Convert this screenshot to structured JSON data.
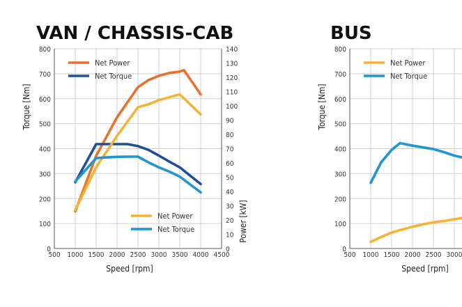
{
  "chart_data": [
    {
      "type": "line",
      "title": "VAN / CHASSIS-CAB",
      "xlabel": "Speed [rpm]",
      "ylabel": "Torque [Nm]",
      "y2label": "Power [kW]",
      "xlim": [
        500,
        4500
      ],
      "ylim": [
        0,
        800
      ],
      "y2lim": [
        0,
        140
      ],
      "xticks": [
        "500",
        "1000",
        "1500",
        "2000",
        "2500",
        "3000",
        "3500",
        "4000",
        "4500"
      ],
      "yticks": [
        "0",
        "100",
        "200",
        "300",
        "400",
        "500",
        "600",
        "700",
        "800"
      ],
      "y2ticks": [
        "0",
        "10",
        "20",
        "30",
        "40",
        "50",
        "60",
        "70",
        "80",
        "90",
        "100",
        "110",
        "120",
        "130",
        "140"
      ],
      "grid": true,
      "legends": [
        {
          "position": "top-left",
          "entries": [
            {
              "label": "Net Power",
              "color": "#e8712c"
            },
            {
              "label": "Net Torque",
              "color": "#1e4f9a"
            }
          ]
        },
        {
          "position": "bottom-right",
          "entries": [
            {
              "label": "Net Power",
              "color": "#f8b133"
            },
            {
              "label": "Net Torque",
              "color": "#1f95d3"
            }
          ]
        }
      ],
      "series": [
        {
          "name": "Net Power",
          "axis": "right",
          "color": "#e8712c",
          "points": [
            [
              1000,
              26
            ],
            [
              1500,
              65
            ],
            [
              2000,
              92
            ],
            [
              2500,
              113
            ],
            [
              2750,
              118
            ],
            [
              3000,
              121
            ],
            [
              3250,
              123
            ],
            [
              3500,
              124
            ],
            [
              3600,
              125
            ],
            [
              4000,
              108
            ]
          ]
        },
        {
          "name": "Net Torque",
          "axis": "left",
          "color": "#1e4f9a",
          "points": [
            [
              1000,
              265
            ],
            [
              1500,
              418
            ],
            [
              1750,
              418
            ],
            [
              2000,
              418
            ],
            [
              2250,
              418
            ],
            [
              2500,
              410
            ],
            [
              2750,
              395
            ],
            [
              3000,
              372
            ],
            [
              3250,
              348
            ],
            [
              3500,
              325
            ],
            [
              4000,
              258
            ]
          ]
        },
        {
          "name": "Net Power",
          "axis": "right",
          "color": "#f8b133",
          "points": [
            [
              1000,
              27
            ],
            [
              1500,
              57
            ],
            [
              2000,
              79
            ],
            [
              2500,
              99
            ],
            [
              2750,
              101
            ],
            [
              3000,
              104
            ],
            [
              3250,
              106
            ],
            [
              3500,
              108
            ],
            [
              4000,
              94
            ]
          ]
        },
        {
          "name": "Net Torque",
          "axis": "left",
          "color": "#1f95d3",
          "points": [
            [
              1000,
              268
            ],
            [
              1500,
              362
            ],
            [
              1750,
              365
            ],
            [
              2000,
              367
            ],
            [
              2250,
              368
            ],
            [
              2500,
              368
            ],
            [
              2750,
              345
            ],
            [
              3000,
              325
            ],
            [
              3250,
              308
            ],
            [
              3500,
              288
            ],
            [
              4000,
              225
            ]
          ]
        }
      ]
    },
    {
      "type": "line",
      "title": "BUS",
      "xlabel": "Speed [rpm]",
      "ylabel": "Torque [Nm]",
      "xlim": [
        500,
        4500
      ],
      "ylim": [
        0,
        800
      ],
      "xticks": [
        "500",
        "1000",
        "1500",
        "2000",
        "2500",
        "3000"
      ],
      "yticks": [
        "0",
        "100",
        "200",
        "300",
        "400",
        "500",
        "600",
        "700",
        "800"
      ],
      "grid": true,
      "legends": [
        {
          "position": "top-left",
          "entries": [
            {
              "label": "Net Power",
              "color": "#f8b133"
            },
            {
              "label": "Net Torque",
              "color": "#1f95d3"
            }
          ]
        }
      ],
      "series": [
        {
          "name": "Net Power",
          "axis": "right",
          "color": "#f8b133",
          "points": [
            [
              1000,
              27
            ],
            [
              1250,
              46
            ],
            [
              1500,
              64
            ],
            [
              1750,
              76
            ],
            [
              2000,
              87
            ],
            [
              2250,
              97
            ],
            [
              2500,
              105
            ],
            [
              2750,
              110
            ],
            [
              3000,
              117
            ],
            [
              3250,
              124
            ]
          ]
        },
        {
          "name": "Net Torque",
          "axis": "left",
          "color": "#1f95d3",
          "points": [
            [
              1000,
              263
            ],
            [
              1250,
              345
            ],
            [
              1500,
              395
            ],
            [
              1700,
              422
            ],
            [
              2000,
              412
            ],
            [
              2250,
              405
            ],
            [
              2500,
              398
            ],
            [
              2750,
              386
            ],
            [
              3000,
              372
            ],
            [
              3250,
              362
            ]
          ]
        }
      ]
    }
  ]
}
